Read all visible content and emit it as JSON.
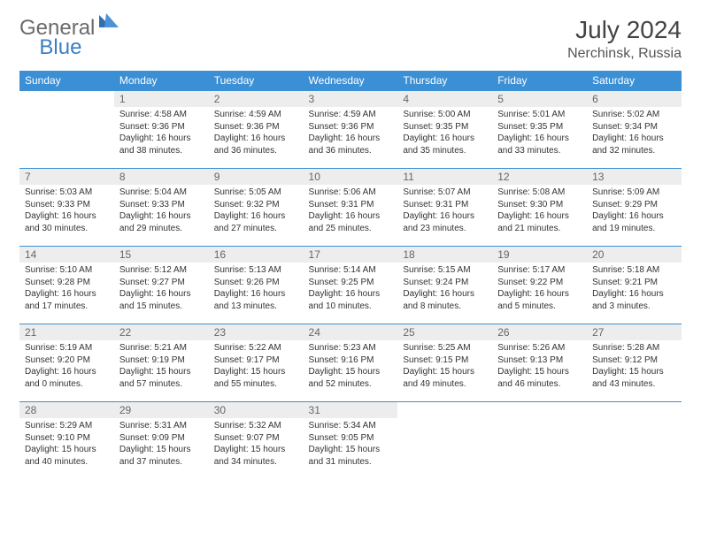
{
  "brand": {
    "part1": "General",
    "part2": "Blue",
    "color1": "#6b6b6b",
    "color2": "#3b7fc4"
  },
  "title": "July 2024",
  "location": "Nerchinsk, Russia",
  "colors": {
    "header_bg": "#3b8fd4",
    "header_fg": "#ffffff",
    "daynum_bg": "#ededed",
    "daynum_fg": "#666666",
    "border": "#3b8fd4",
    "text": "#333333"
  },
  "fonts": {
    "title_pt": 28,
    "location_pt": 16,
    "th_pt": 12,
    "daynum_pt": 12,
    "body_pt": 10
  },
  "weekdays": [
    "Sunday",
    "Monday",
    "Tuesday",
    "Wednesday",
    "Thursday",
    "Friday",
    "Saturday"
  ],
  "start_offset": 1,
  "days": [
    {
      "n": 1,
      "sunrise": "4:58 AM",
      "sunset": "9:36 PM",
      "daylight": "16 hours and 38 minutes."
    },
    {
      "n": 2,
      "sunrise": "4:59 AM",
      "sunset": "9:36 PM",
      "daylight": "16 hours and 36 minutes."
    },
    {
      "n": 3,
      "sunrise": "4:59 AM",
      "sunset": "9:36 PM",
      "daylight": "16 hours and 36 minutes."
    },
    {
      "n": 4,
      "sunrise": "5:00 AM",
      "sunset": "9:35 PM",
      "daylight": "16 hours and 35 minutes."
    },
    {
      "n": 5,
      "sunrise": "5:01 AM",
      "sunset": "9:35 PM",
      "daylight": "16 hours and 33 minutes."
    },
    {
      "n": 6,
      "sunrise": "5:02 AM",
      "sunset": "9:34 PM",
      "daylight": "16 hours and 32 minutes."
    },
    {
      "n": 7,
      "sunrise": "5:03 AM",
      "sunset": "9:33 PM",
      "daylight": "16 hours and 30 minutes."
    },
    {
      "n": 8,
      "sunrise": "5:04 AM",
      "sunset": "9:33 PM",
      "daylight": "16 hours and 29 minutes."
    },
    {
      "n": 9,
      "sunrise": "5:05 AM",
      "sunset": "9:32 PM",
      "daylight": "16 hours and 27 minutes."
    },
    {
      "n": 10,
      "sunrise": "5:06 AM",
      "sunset": "9:31 PM",
      "daylight": "16 hours and 25 minutes."
    },
    {
      "n": 11,
      "sunrise": "5:07 AM",
      "sunset": "9:31 PM",
      "daylight": "16 hours and 23 minutes."
    },
    {
      "n": 12,
      "sunrise": "5:08 AM",
      "sunset": "9:30 PM",
      "daylight": "16 hours and 21 minutes."
    },
    {
      "n": 13,
      "sunrise": "5:09 AM",
      "sunset": "9:29 PM",
      "daylight": "16 hours and 19 minutes."
    },
    {
      "n": 14,
      "sunrise": "5:10 AM",
      "sunset": "9:28 PM",
      "daylight": "16 hours and 17 minutes."
    },
    {
      "n": 15,
      "sunrise": "5:12 AM",
      "sunset": "9:27 PM",
      "daylight": "16 hours and 15 minutes."
    },
    {
      "n": 16,
      "sunrise": "5:13 AM",
      "sunset": "9:26 PM",
      "daylight": "16 hours and 13 minutes."
    },
    {
      "n": 17,
      "sunrise": "5:14 AM",
      "sunset": "9:25 PM",
      "daylight": "16 hours and 10 minutes."
    },
    {
      "n": 18,
      "sunrise": "5:15 AM",
      "sunset": "9:24 PM",
      "daylight": "16 hours and 8 minutes."
    },
    {
      "n": 19,
      "sunrise": "5:17 AM",
      "sunset": "9:22 PM",
      "daylight": "16 hours and 5 minutes."
    },
    {
      "n": 20,
      "sunrise": "5:18 AM",
      "sunset": "9:21 PM",
      "daylight": "16 hours and 3 minutes."
    },
    {
      "n": 21,
      "sunrise": "5:19 AM",
      "sunset": "9:20 PM",
      "daylight": "16 hours and 0 minutes."
    },
    {
      "n": 22,
      "sunrise": "5:21 AM",
      "sunset": "9:19 PM",
      "daylight": "15 hours and 57 minutes."
    },
    {
      "n": 23,
      "sunrise": "5:22 AM",
      "sunset": "9:17 PM",
      "daylight": "15 hours and 55 minutes."
    },
    {
      "n": 24,
      "sunrise": "5:23 AM",
      "sunset": "9:16 PM",
      "daylight": "15 hours and 52 minutes."
    },
    {
      "n": 25,
      "sunrise": "5:25 AM",
      "sunset": "9:15 PM",
      "daylight": "15 hours and 49 minutes."
    },
    {
      "n": 26,
      "sunrise": "5:26 AM",
      "sunset": "9:13 PM",
      "daylight": "15 hours and 46 minutes."
    },
    {
      "n": 27,
      "sunrise": "5:28 AM",
      "sunset": "9:12 PM",
      "daylight": "15 hours and 43 minutes."
    },
    {
      "n": 28,
      "sunrise": "5:29 AM",
      "sunset": "9:10 PM",
      "daylight": "15 hours and 40 minutes."
    },
    {
      "n": 29,
      "sunrise": "5:31 AM",
      "sunset": "9:09 PM",
      "daylight": "15 hours and 37 minutes."
    },
    {
      "n": 30,
      "sunrise": "5:32 AM",
      "sunset": "9:07 PM",
      "daylight": "15 hours and 34 minutes."
    },
    {
      "n": 31,
      "sunrise": "5:34 AM",
      "sunset": "9:05 PM",
      "daylight": "15 hours and 31 minutes."
    }
  ],
  "labels": {
    "sunrise": "Sunrise:",
    "sunset": "Sunset:",
    "daylight": "Daylight:"
  }
}
